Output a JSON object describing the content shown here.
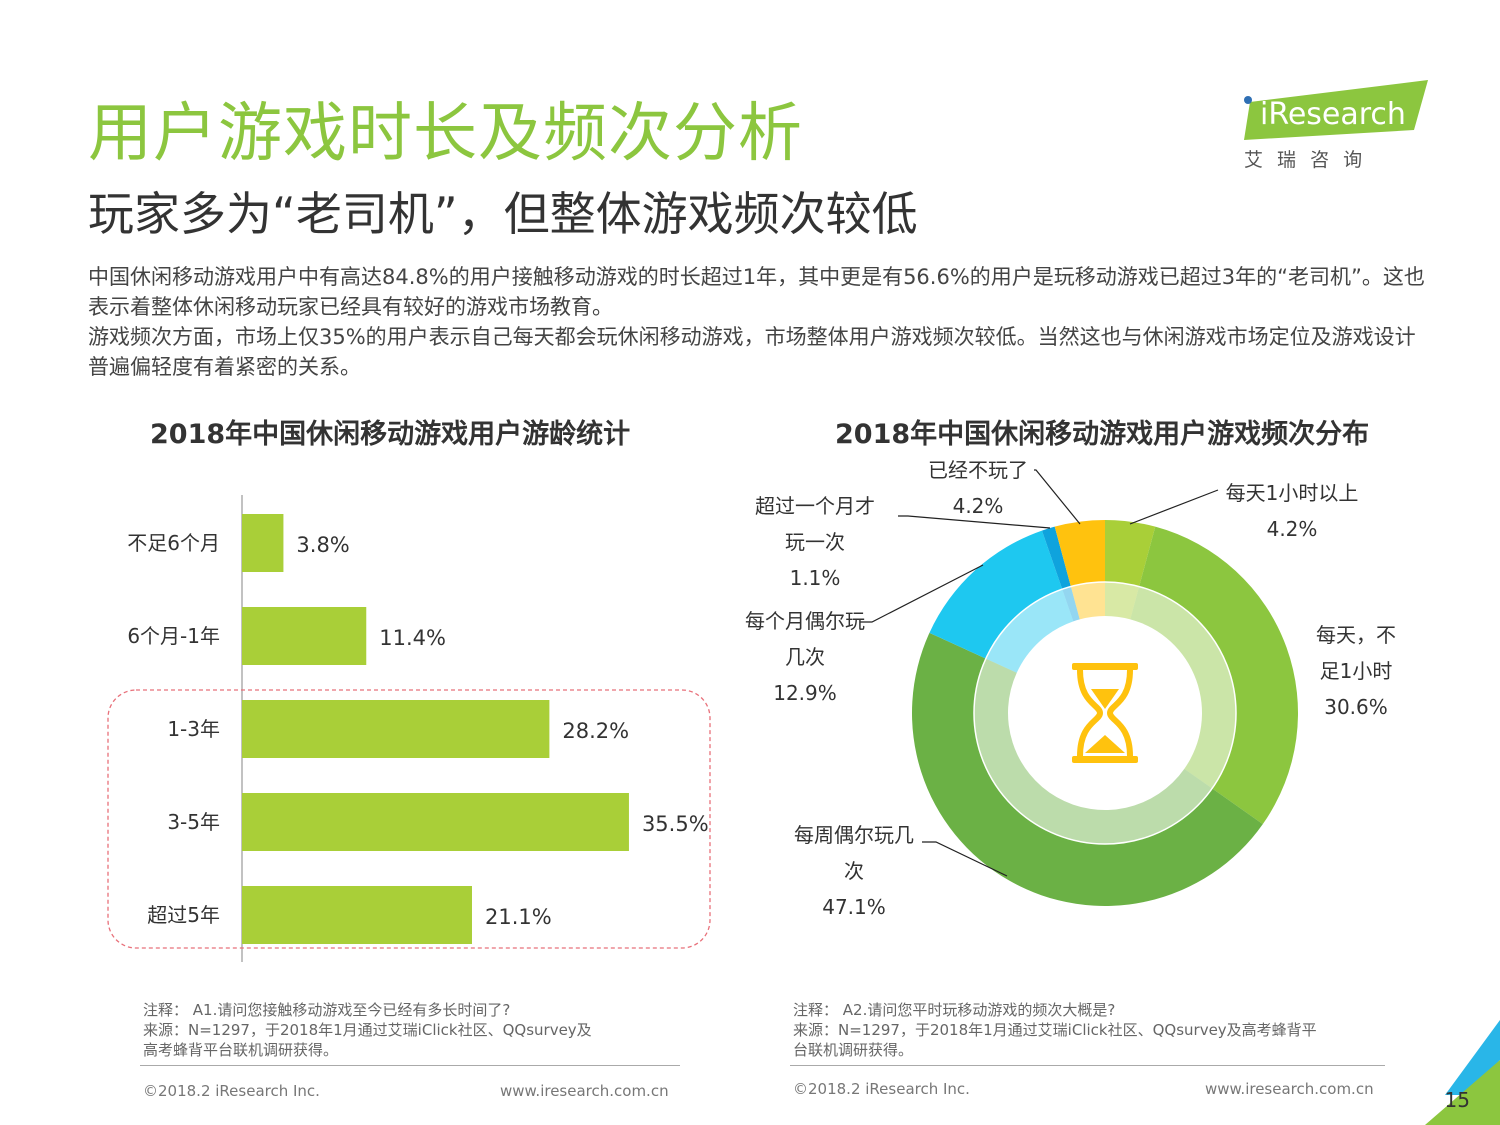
{
  "header": {
    "title": "用户游戏时长及频次分析",
    "subtitle": "玩家多为“老司机”，但整体游戏频次较低",
    "paragraphs": [
      "中国休闲移动游戏用户中有高达84.8%的用户接触移动游戏的时长超过1年，其中更是有56.6%的用户是玩移动游戏已超过3年的“老司机”。这也表示着整体休闲移动玩家已经具有较好的游戏市场教育。",
      "游戏频次方面，市场上仅35%的用户表示自己每天都会玩休闲移动游戏，市场整体用户游戏频次较低。当然这也与休闲游戏市场定位及游戏设计普遍偏轻度有着紧密的关系。"
    ]
  },
  "logo": {
    "name": "iResearch",
    "cn": "艾 瑞 咨 询",
    "color": "#8cc63f"
  },
  "chart_data": [
    {
      "type": "bar",
      "title": "2018年中国休闲移动游戏用户游龄统计",
      "orientation": "horizontal",
      "categories": [
        "不足6个月",
        "6个月-1年",
        "1-3年",
        "3-5年",
        "超过5年"
      ],
      "values": [
        3.8,
        11.4,
        28.2,
        35.5,
        21.1
      ],
      "labels": [
        "3.8%",
        "11.4%",
        "28.2%",
        "35.5%",
        "21.1%"
      ],
      "unit": "%",
      "xlim": [
        0,
        40
      ],
      "color": "#a9cf38",
      "highlight": "dashed box around 1-3年, 3-5年, 超过5年"
    },
    {
      "type": "pie",
      "variant": "donut",
      "title": "2018年中国休闲移动游戏用户游戏频次分布",
      "slices": [
        {
          "label": "每天1小时以上",
          "value": 4.2,
          "text": "4.2%",
          "color": "#a9cf38"
        },
        {
          "label": "每天，不足1小时",
          "value": 30.6,
          "text": "30.6%",
          "color": "#8cc63f"
        },
        {
          "label": "每周偶尔玩几次",
          "value": 47.1,
          "text": "47.1%",
          "color": "#6bb145"
        },
        {
          "label": "每个月偶尔玩几次",
          "value": 12.9,
          "text": "12.9%",
          "color": "#1ec8f0"
        },
        {
          "label": "超过一个月才玩一次",
          "value": 1.1,
          "text": "1.1%",
          "color": "#0fa3dd"
        },
        {
          "label": "已经不玩了",
          "value": 4.2,
          "text": "4.2%",
          "color": "#ffc20e"
        }
      ],
      "label_lines": [
        [
          "每天1小时以上",
          "4.2%"
        ],
        [
          "每天，不",
          "足1小时",
          "30.6%"
        ],
        [
          "每周偶尔玩几",
          "次",
          "47.1%"
        ],
        [
          "每个月偶尔玩",
          "几次",
          "12.9%"
        ],
        [
          "超过一个月才",
          "玩一次",
          "1.1%"
        ],
        [
          "已经不玩了",
          "4.2%"
        ]
      ],
      "center_icon": "hourglass-icon",
      "icon_color": "#ffc20e"
    }
  ],
  "notes": {
    "left": [
      "注释： A1.请问您接触移动游戏至今已经有多长时间了?",
      "来源：N=1297，于2018年1月通过艾瑞iClick社区、QQsurvey及",
      "高考蜂背平台联机调研获得。"
    ],
    "right": [
      "注释： A2.请问您平时玩移动游戏的频次大概是?",
      "来源：N=1297，于2018年1月通过艾瑞iClick社区、QQsurvey及高考蜂背平",
      "台联机调研获得。"
    ]
  },
  "footer": {
    "copyright": "©2018.2 iResearch Inc.",
    "url": "www.iresearch.com.cn",
    "page": "15"
  }
}
